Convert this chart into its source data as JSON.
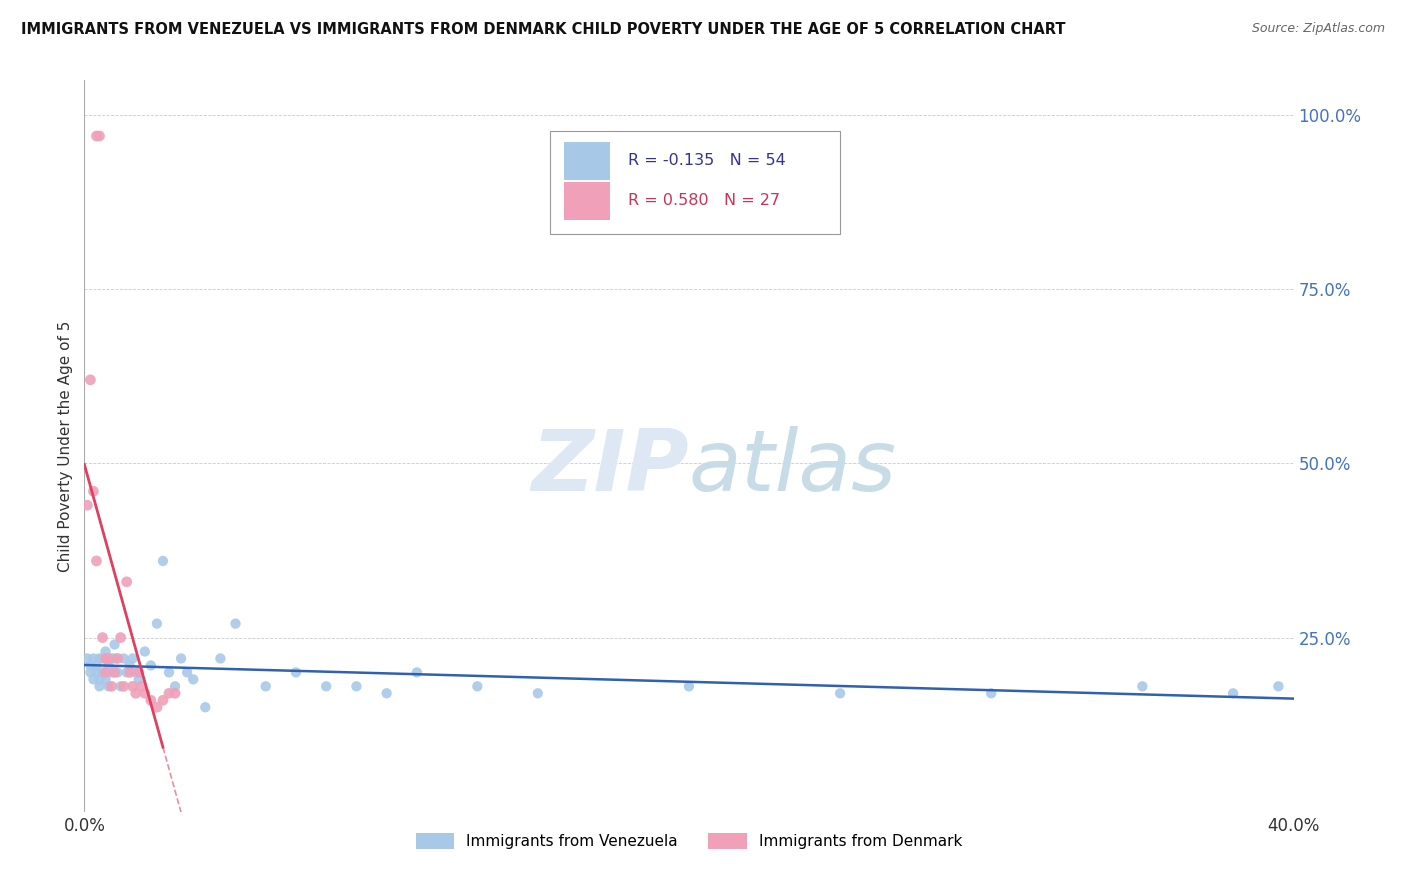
{
  "title": "IMMIGRANTS FROM VENEZUELA VS IMMIGRANTS FROM DENMARK CHILD POVERTY UNDER THE AGE OF 5 CORRELATION CHART",
  "source": "Source: ZipAtlas.com",
  "ylabel": "Child Poverty Under the Age of 5",
  "xlim": [
    0.0,
    0.4
  ],
  "ylim": [
    0.0,
    1.05
  ],
  "legend1_R": "-0.135",
  "legend1_N": "54",
  "legend2_R": "0.580",
  "legend2_N": "27",
  "legend_label1": "Immigrants from Venezuela",
  "legend_label2": "Immigrants from Denmark",
  "color_venezuela": "#a8c8e8",
  "color_denmark": "#f0a0b8",
  "color_line_venezuela": "#3060b0",
  "color_line_denmark": "#e04060",
  "background_color": "#ffffff",
  "venezuela_x": [
    0.001,
    0.002,
    0.002,
    0.003,
    0.003,
    0.004,
    0.004,
    0.005,
    0.005,
    0.005,
    0.006,
    0.006,
    0.007,
    0.007,
    0.008,
    0.008,
    0.009,
    0.009,
    0.01,
    0.01,
    0.011,
    0.012,
    0.013,
    0.014,
    0.015,
    0.016,
    0.017,
    0.018,
    0.02,
    0.022,
    0.024,
    0.026,
    0.028,
    0.03,
    0.032,
    0.034,
    0.036,
    0.04,
    0.045,
    0.05,
    0.06,
    0.07,
    0.08,
    0.09,
    0.1,
    0.11,
    0.13,
    0.15,
    0.2,
    0.25,
    0.3,
    0.35,
    0.38,
    0.395
  ],
  "venezuela_y": [
    0.22,
    0.2,
    0.21,
    0.22,
    0.19,
    0.21,
    0.2,
    0.22,
    0.19,
    0.18,
    0.22,
    0.2,
    0.23,
    0.19,
    0.21,
    0.18,
    0.22,
    0.2,
    0.24,
    0.22,
    0.2,
    0.18,
    0.22,
    0.2,
    0.21,
    0.22,
    0.2,
    0.19,
    0.23,
    0.21,
    0.27,
    0.36,
    0.2,
    0.18,
    0.22,
    0.2,
    0.19,
    0.15,
    0.22,
    0.27,
    0.18,
    0.2,
    0.18,
    0.18,
    0.17,
    0.2,
    0.18,
    0.17,
    0.18,
    0.17,
    0.17,
    0.18,
    0.17,
    0.18
  ],
  "denmark_x": [
    0.001,
    0.002,
    0.003,
    0.004,
    0.004,
    0.005,
    0.006,
    0.007,
    0.007,
    0.008,
    0.009,
    0.01,
    0.011,
    0.012,
    0.013,
    0.014,
    0.015,
    0.016,
    0.017,
    0.018,
    0.019,
    0.02,
    0.022,
    0.024,
    0.026,
    0.028,
    0.03
  ],
  "denmark_y": [
    0.44,
    0.62,
    0.46,
    0.36,
    0.97,
    0.97,
    0.25,
    0.22,
    0.2,
    0.22,
    0.18,
    0.2,
    0.22,
    0.25,
    0.18,
    0.33,
    0.2,
    0.18,
    0.17,
    0.2,
    0.18,
    0.17,
    0.16,
    0.15,
    0.16,
    0.17,
    0.17
  ],
  "ytick_values": [
    0.0,
    0.25,
    0.5,
    0.75,
    1.0
  ],
  "ytick_labels": [
    "",
    "25.0%",
    "50.0%",
    "75.0%",
    "100.0%"
  ]
}
